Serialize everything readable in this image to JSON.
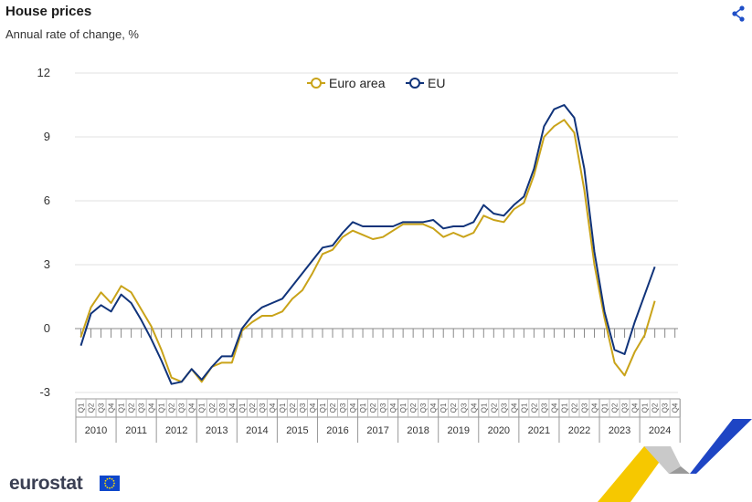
{
  "header": {
    "title": "House prices",
    "subtitle": "Annual rate of change, %"
  },
  "share_icon": "share-icon",
  "logo": {
    "text": "eurostat",
    "icon": "eu-flag-icon"
  },
  "colors": {
    "euro_area": "#c9a319",
    "eu": "#10337a",
    "grid": "#e0e0e0",
    "ribbon_yellow": "#f6c800",
    "ribbon_blue": "#1e45c4"
  },
  "chart_data": {
    "type": "line",
    "title": "House prices",
    "subtitle": "Annual rate of change, %",
    "ylim": [
      -3,
      12
    ],
    "yticks": [
      -3,
      0,
      3,
      6,
      9,
      12
    ],
    "legend_position": "top-center",
    "grid": true,
    "years": [
      "2010",
      "2011",
      "2012",
      "2013",
      "2014",
      "2015",
      "2016",
      "2017",
      "2018",
      "2019",
      "2020",
      "2021",
      "2022",
      "2023",
      "2024"
    ],
    "quarters": [
      "Q1",
      "Q2",
      "Q3",
      "Q4"
    ],
    "x": [
      "2010Q1",
      "2010Q2",
      "2010Q3",
      "2010Q4",
      "2011Q1",
      "2011Q2",
      "2011Q3",
      "2011Q4",
      "2012Q1",
      "2012Q2",
      "2012Q3",
      "2012Q4",
      "2013Q1",
      "2013Q2",
      "2013Q3",
      "2013Q4",
      "2014Q1",
      "2014Q2",
      "2014Q3",
      "2014Q4",
      "2015Q1",
      "2015Q2",
      "2015Q3",
      "2015Q4",
      "2016Q1",
      "2016Q2",
      "2016Q3",
      "2016Q4",
      "2017Q1",
      "2017Q2",
      "2017Q3",
      "2017Q4",
      "2018Q1",
      "2018Q2",
      "2018Q3",
      "2018Q4",
      "2019Q1",
      "2019Q2",
      "2019Q3",
      "2019Q4",
      "2020Q1",
      "2020Q2",
      "2020Q3",
      "2020Q4",
      "2021Q1",
      "2021Q2",
      "2021Q3",
      "2021Q4",
      "2022Q1",
      "2022Q2",
      "2022Q3",
      "2022Q4",
      "2023Q1",
      "2023Q2",
      "2023Q3",
      "2023Q4",
      "2024Q1",
      "2024Q2",
      "2024Q3",
      "2024Q4"
    ],
    "series": [
      {
        "name": "Euro area",
        "values": [
          -0.4,
          1.0,
          1.7,
          1.2,
          2.0,
          1.7,
          0.9,
          0.1,
          -1.0,
          -2.3,
          -2.5,
          -1.9,
          -2.5,
          -1.8,
          -1.6,
          -1.6,
          -0.1,
          0.3,
          0.6,
          0.6,
          0.8,
          1.4,
          1.8,
          2.6,
          3.5,
          3.7,
          4.3,
          4.6,
          4.4,
          4.2,
          4.3,
          4.6,
          4.9,
          4.9,
          4.9,
          4.7,
          4.3,
          4.5,
          4.3,
          4.5,
          5.3,
          5.1,
          5.0,
          5.6,
          5.9,
          7.2,
          9.0,
          9.5,
          9.8,
          9.2,
          6.5,
          3.0,
          0.5,
          -1.6,
          -2.2,
          -1.1,
          -0.3,
          1.3,
          null,
          null
        ]
      },
      {
        "name": "EU",
        "values": [
          -0.8,
          0.7,
          1.1,
          0.8,
          1.6,
          1.2,
          0.4,
          -0.5,
          -1.5,
          -2.6,
          -2.5,
          -1.9,
          -2.4,
          -1.8,
          -1.3,
          -1.3,
          0.0,
          0.6,
          1.0,
          1.2,
          1.4,
          2.0,
          2.6,
          3.2,
          3.8,
          3.9,
          4.5,
          5.0,
          4.8,
          4.8,
          4.8,
          4.8,
          5.0,
          5.0,
          5.0,
          5.1,
          4.7,
          4.8,
          4.8,
          5.0,
          5.8,
          5.4,
          5.3,
          5.8,
          6.2,
          7.5,
          9.5,
          10.3,
          10.5,
          9.9,
          7.5,
          3.6,
          0.8,
          -1.0,
          -1.2,
          0.3,
          1.6,
          2.9,
          null,
          null
        ]
      }
    ]
  }
}
